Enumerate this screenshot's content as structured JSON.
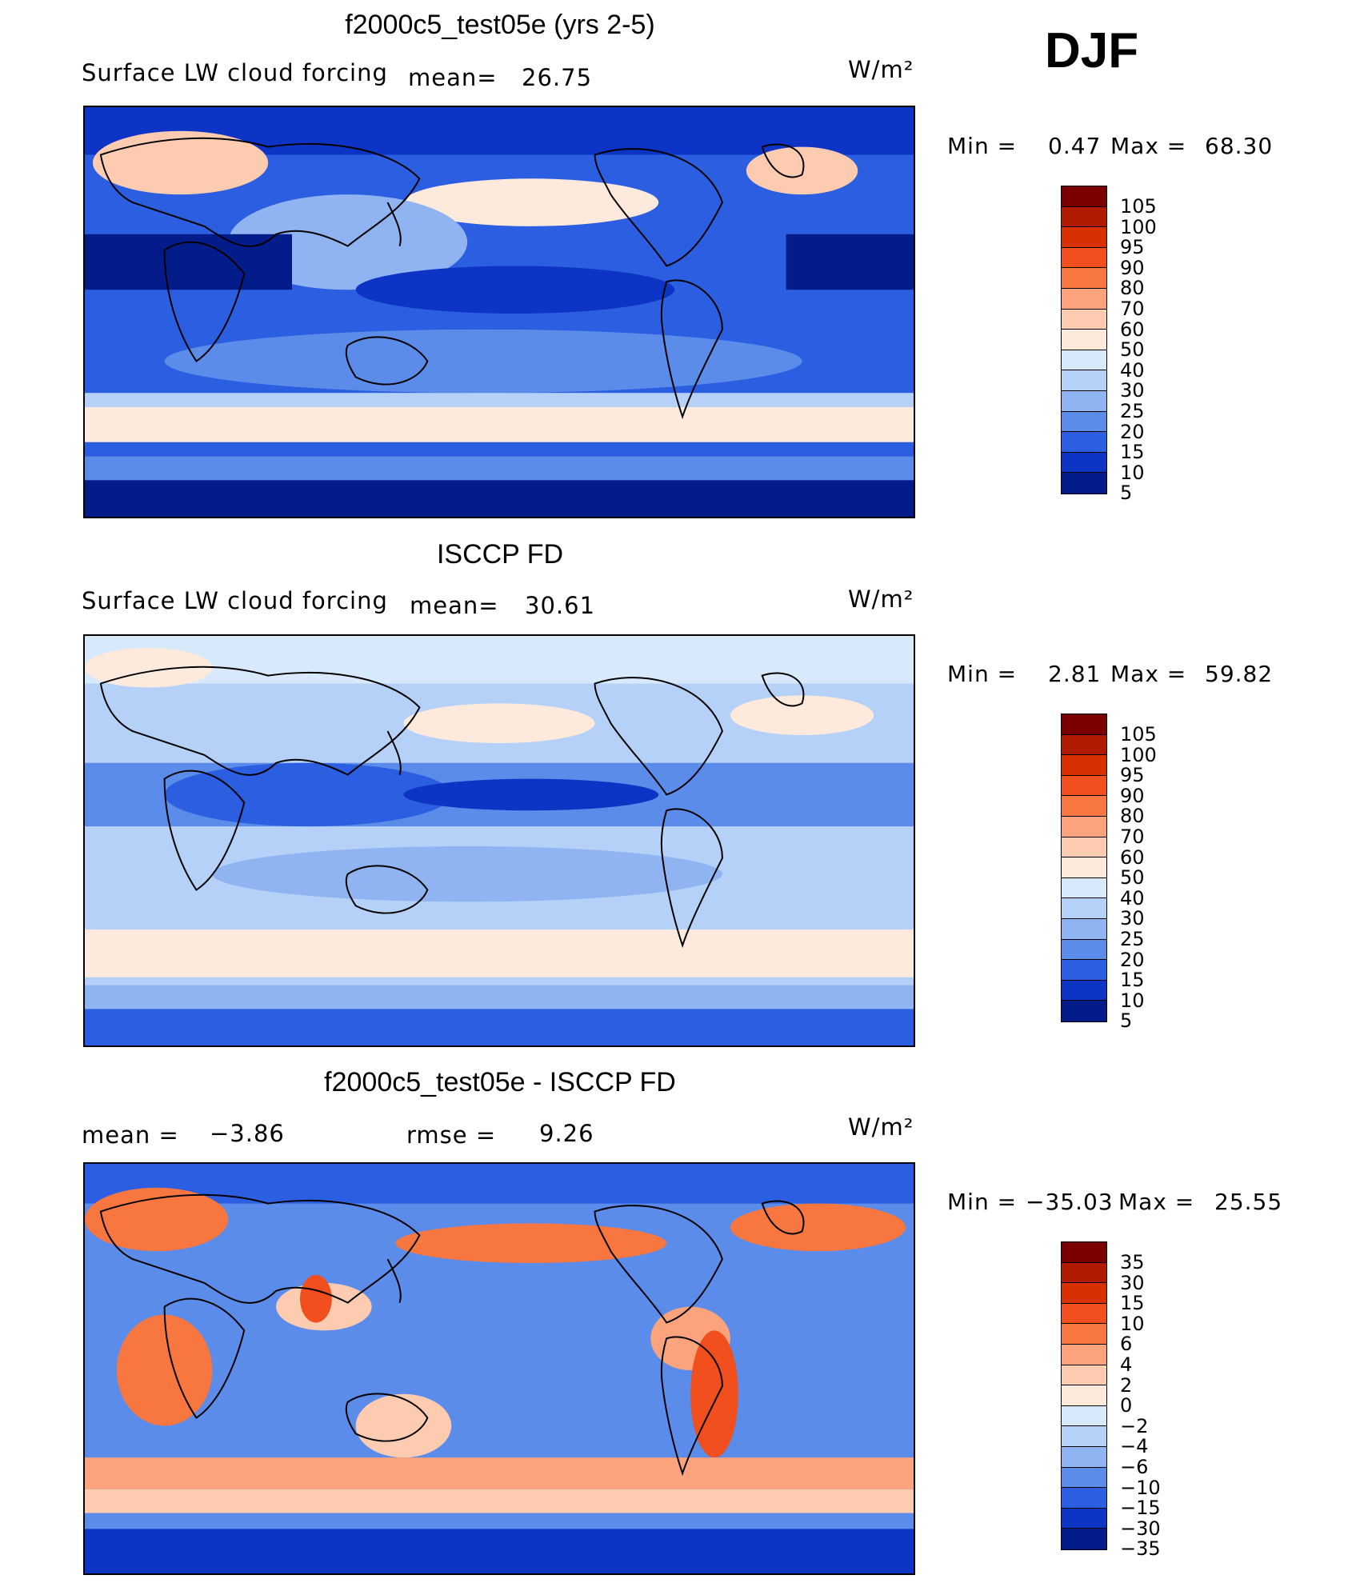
{
  "season": "DJF",
  "units": "W/m²",
  "panels": [
    {
      "title": "f2000c5_test05e (yrs 2-5)",
      "variable": "Surface LW cloud forcing",
      "mean_label": "mean=",
      "mean_value": "26.75",
      "min_label": "Min =",
      "min_value": "0.47",
      "max_label": "Max =",
      "max_value": "68.30",
      "levels": [
        "105",
        "100",
        "95",
        "90",
        "80",
        "70",
        "60",
        "50",
        "40",
        "30",
        "25",
        "20",
        "15",
        "10",
        "5"
      ],
      "colors": [
        "#7a0000",
        "#b01a00",
        "#d93000",
        "#f24f1e",
        "#f8763f",
        "#fba37c",
        "#fdcbb0",
        "#fdeadc",
        "#d8e9fb",
        "#b5d1f7",
        "#8fb4f1",
        "#5c8ce9",
        "#2b5ee0",
        "#0d34c4",
        "#041c8a"
      ]
    },
    {
      "title": "ISCCP FD",
      "variable": "Surface LW cloud forcing",
      "mean_label": "mean=",
      "mean_value": "30.61",
      "min_label": "Min =",
      "min_value": "2.81",
      "max_label": "Max =",
      "max_value": "59.82",
      "levels": [
        "105",
        "100",
        "95",
        "90",
        "80",
        "70",
        "60",
        "50",
        "40",
        "30",
        "25",
        "20",
        "15",
        "10",
        "5"
      ],
      "colors": [
        "#7a0000",
        "#b01a00",
        "#d93000",
        "#f24f1e",
        "#f8763f",
        "#fba37c",
        "#fdcbb0",
        "#fdeadc",
        "#d8e9fb",
        "#b5d1f7",
        "#8fb4f1",
        "#5c8ce9",
        "#2b5ee0",
        "#0d34c4",
        "#041c8a"
      ]
    },
    {
      "title": "f2000c5_test05e - ISCCP FD",
      "mean_label": "mean =",
      "mean_value": "−3.86",
      "rmse_label": "rmse =",
      "rmse_value": "9.26",
      "min_label": "Min =",
      "min_value": "−35.03",
      "max_label": "Max =",
      "max_value": "25.55",
      "levels": [
        "35",
        "30",
        "15",
        "10",
        "6",
        "4",
        "2",
        "0",
        "−2",
        "−4",
        "−6",
        "−10",
        "−15",
        "−30",
        "−35"
      ],
      "colors": [
        "#7a0000",
        "#b01a00",
        "#d93000",
        "#f24f1e",
        "#f8763f",
        "#fba37c",
        "#fdcbb0",
        "#fdeadc",
        "#d8e9fb",
        "#b5d1f7",
        "#8fb4f1",
        "#5c8ce9",
        "#2b5ee0",
        "#0d34c4",
        "#041c8a"
      ]
    }
  ]
}
